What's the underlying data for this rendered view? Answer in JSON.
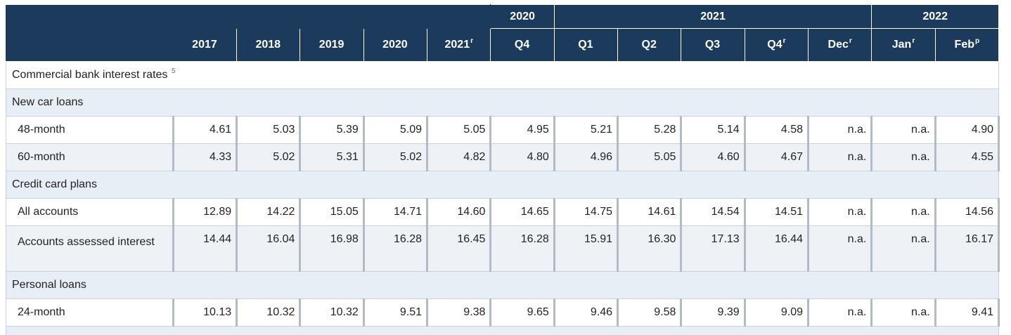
{
  "header": {
    "row1": {
      "q2020": "2020",
      "g2021": "2021",
      "g2022": "2022"
    },
    "row2": [
      {
        "label": "2017",
        "sup": ""
      },
      {
        "label": "2018",
        "sup": ""
      },
      {
        "label": "2019",
        "sup": ""
      },
      {
        "label": "2020",
        "sup": ""
      },
      {
        "label": "2021",
        "sup": "r"
      },
      {
        "label": "Q4",
        "sup": ""
      },
      {
        "label": "Q1",
        "sup": ""
      },
      {
        "label": "Q2",
        "sup": ""
      },
      {
        "label": "Q3",
        "sup": ""
      },
      {
        "label": "Q4",
        "sup": "r"
      },
      {
        "label": "Dec",
        "sup": "r"
      },
      {
        "label": "Jan",
        "sup": "r"
      },
      {
        "label": "Feb",
        "sup": "p"
      }
    ]
  },
  "section": {
    "title": "Commercial bank interest rates",
    "footnote": "5"
  },
  "groups": [
    {
      "title": "New car loans",
      "rows": [
        {
          "label": "48-month",
          "values": [
            "4.61",
            "5.03",
            "5.39",
            "5.09",
            "5.05",
            "4.95",
            "5.21",
            "5.28",
            "5.14",
            "4.58",
            "n.a.",
            "n.a.",
            "4.90"
          ]
        },
        {
          "label": "60-month",
          "values": [
            "4.33",
            "5.02",
            "5.31",
            "5.02",
            "4.82",
            "4.80",
            "4.96",
            "5.05",
            "4.60",
            "4.67",
            "n.a.",
            "n.a.",
            "4.55"
          ]
        }
      ]
    },
    {
      "title": "Credit card plans",
      "rows": [
        {
          "label": "All accounts",
          "values": [
            "12.89",
            "14.22",
            "15.05",
            "14.71",
            "14.60",
            "14.65",
            "14.75",
            "14.61",
            "14.54",
            "14.51",
            "n.a.",
            "n.a.",
            "14.56"
          ]
        },
        {
          "label": "Accounts assessed interest",
          "values": [
            "14.44",
            "16.04",
            "16.98",
            "16.28",
            "16.45",
            "16.28",
            "15.91",
            "16.30",
            "17.13",
            "16.44",
            "n.a.",
            "n.a.",
            "16.17"
          ]
        }
      ]
    },
    {
      "title": "Personal loans",
      "rows": [
        {
          "label": "24-month",
          "values": [
            "10.13",
            "10.32",
            "10.32",
            "9.51",
            "9.38",
            "9.65",
            "9.46",
            "9.58",
            "9.39",
            "9.09",
            "n.a.",
            "n.a.",
            "9.41"
          ]
        }
      ]
    }
  ]
}
